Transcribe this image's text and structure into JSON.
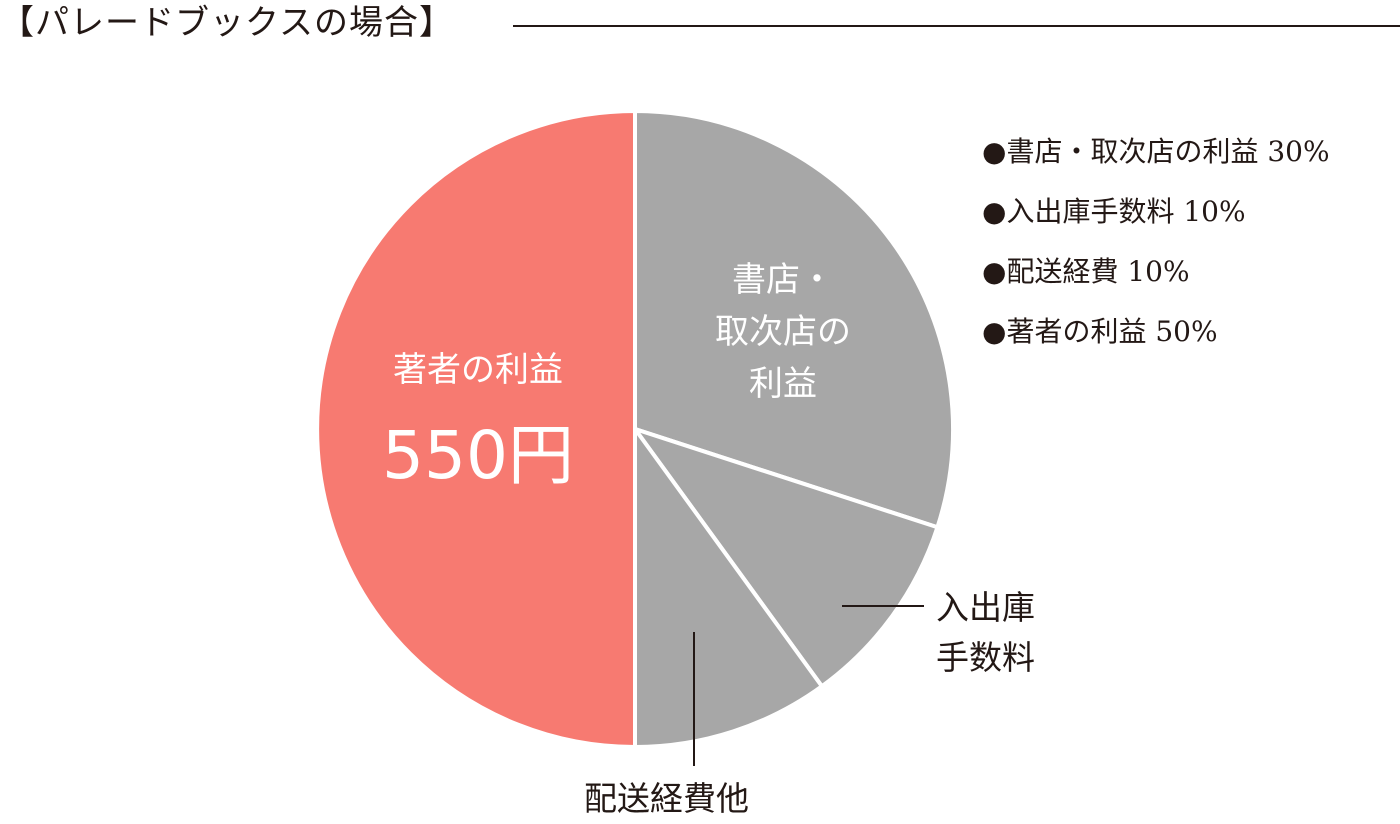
{
  "title": "【パレードブックスの場合】",
  "legend": [
    {
      "bullet": "●",
      "text": "書店・取次店の利益 30%"
    },
    {
      "bullet": "●",
      "text": "入出庫手数料 10%"
    },
    {
      "bullet": "●",
      "text": "配送経費 10%"
    },
    {
      "bullet": "●",
      "text": "著者の利益 50%"
    }
  ],
  "chart_data": {
    "type": "pie",
    "slices": [
      {
        "label": "書店・取次店の利益",
        "percent": 30,
        "color": "#a7a7a7"
      },
      {
        "label": "入出庫手数料",
        "percent": 10,
        "color": "#a7a7a7"
      },
      {
        "label": "配送経費",
        "percent": 10,
        "color": "#a7a7a7"
      },
      {
        "label": "著者の利益",
        "percent": 50,
        "color": "#f77a71"
      }
    ],
    "slice_text": {
      "author_line1": "著者の利益",
      "author_line2": "550円",
      "store_line1": "書店・",
      "store_line2": "取次店の",
      "store_line3": "利益"
    },
    "callouts": {
      "handling_line1": "入出庫",
      "handling_line2": "手数料",
      "shipping": "配送経費他"
    }
  }
}
